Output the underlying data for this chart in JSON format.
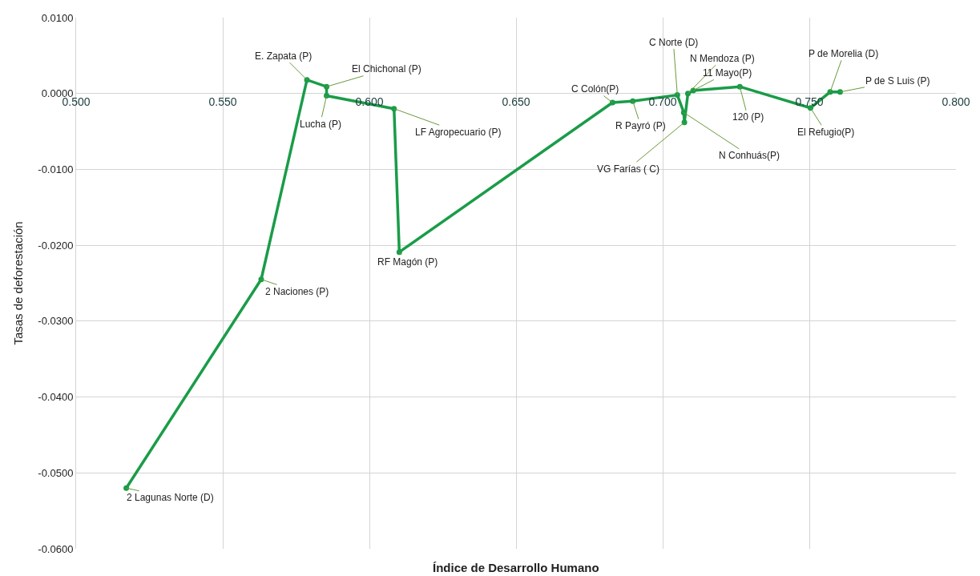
{
  "chart_data": {
    "type": "line",
    "xlabel": "Índice de Desarrollo Humano",
    "ylabel": "Tasas de deforestación",
    "x": [
      0.5171,
      0.5631,
      0.5787,
      0.5854,
      0.5854,
      0.6084,
      0.6102,
      0.6829,
      0.6898,
      0.705,
      0.7072,
      0.7074,
      0.7086,
      0.7104,
      0.7263,
      0.7504,
      0.7571,
      0.7605
    ],
    "series": [
      {
        "color": "#1a9c48",
        "values": [
          -0.052,
          -0.0245,
          0.0018,
          0.0009,
          -0.0003,
          -0.002,
          -0.0209,
          -0.0012,
          -0.001,
          -0.0002,
          -0.0025,
          -0.0038,
          0.0,
          0.0004,
          0.0009,
          -0.0019,
          0.0002,
          0.0002
        ]
      }
    ],
    "annotations": [
      {
        "text": "2 Lagunas Norte (D)",
        "x": 0.5171,
        "y": -0.052
      },
      {
        "text": "2 Naciones (P)",
        "x": 0.5631,
        "y": -0.0245
      },
      {
        "text": "E. Zapata (P)",
        "x": 0.5787,
        "y": 0.0018
      },
      {
        "text": "El Chichonal (P)",
        "x": 0.5854,
        "y": 0.0009
      },
      {
        "text": "Lucha (P)",
        "x": 0.5854,
        "y": -0.0003
      },
      {
        "text": "LF Agropecuario (P)",
        "x": 0.6084,
        "y": -0.002
      },
      {
        "text": "RF Magón (P)",
        "x": 0.6102,
        "y": -0.0209
      },
      {
        "text": "C Colón(P)",
        "x": 0.6829,
        "y": -0.0012
      },
      {
        "text": "R Payró (P)",
        "x": 0.6898,
        "y": -0.001
      },
      {
        "text": "C Norte (D)",
        "x": 0.705,
        "y": -0.0002
      },
      {
        "text": "N Conhuás(P)",
        "x": 0.7072,
        "y": -0.0025
      },
      {
        "text": "VG Farías ( C)",
        "x": 0.7074,
        "y": -0.0038
      },
      {
        "text": "N Mendoza (P)",
        "x": 0.7086,
        "y": 0.0
      },
      {
        "text": "11 Mayo(P)",
        "x": 0.7104,
        "y": 0.0004
      },
      {
        "text": "120 (P)",
        "x": 0.7263,
        "y": 0.0009
      },
      {
        "text": "El Refugio(P)",
        "x": 0.7504,
        "y": -0.0019
      },
      {
        "text": "P de Morelia (D)",
        "x": 0.7571,
        "y": 0.0002
      },
      {
        "text": "P de S Luis (P)",
        "x": 0.7605,
        "y": 0.0002
      }
    ],
    "xlim": [
      0.5,
      0.8
    ],
    "xticks": [
      {
        "value": 0.5,
        "label": "0.500"
      },
      {
        "value": 0.55,
        "label": "0.550"
      },
      {
        "value": 0.6,
        "label": "0.600"
      },
      {
        "value": 0.65,
        "label": "0.650"
      },
      {
        "value": 0.7,
        "label": "0.700"
      },
      {
        "value": 0.75,
        "label": "0.750"
      },
      {
        "value": 0.8,
        "label": "0.800"
      }
    ],
    "ylim": [
      -0.06,
      0.01
    ],
    "yticks": [
      {
        "value": 0.01,
        "label": "0.0100"
      },
      {
        "value": 0.0,
        "label": "0.0000"
      },
      {
        "value": -0.01,
        "label": "-0.0100"
      },
      {
        "value": -0.02,
        "label": "-0.0200"
      },
      {
        "value": -0.03,
        "label": "-0.0300"
      },
      {
        "value": -0.04,
        "label": "-0.0400"
      },
      {
        "value": -0.05,
        "label": "-0.0500"
      },
      {
        "value": -0.06,
        "label": "-0.0600"
      }
    ],
    "grid": true,
    "marker": "circle",
    "line_style": "solid"
  }
}
